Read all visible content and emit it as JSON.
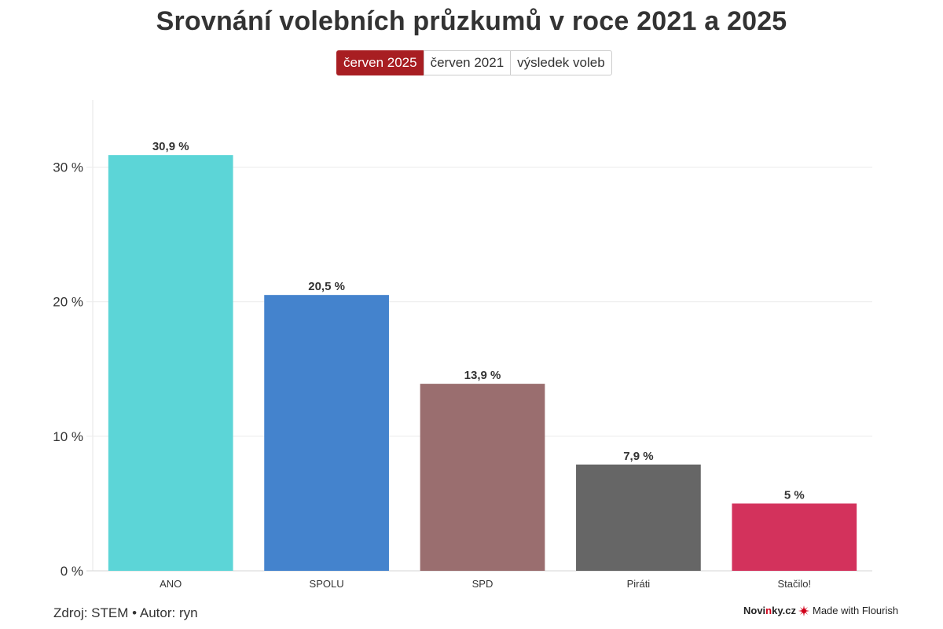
{
  "title": "Srovnání volebních průzkumů v roce 2021 a 2025",
  "tabs": [
    {
      "label": "červen 2025",
      "active": true
    },
    {
      "label": "červen 2021",
      "active": false
    },
    {
      "label": "výsledek voleb",
      "active": false
    }
  ],
  "footer": {
    "source": "Zdroj: STEM • Autor: ryn",
    "brand_novinky_prefix": "Novi",
    "brand_novinky_accent": "n",
    "brand_novinky_suffix": "ky.cz",
    "brand_flourish": "Made with Flourish"
  },
  "chart_data": {
    "type": "bar",
    "title": "Srovnání volebních průzkumů v roce 2021 a 2025",
    "categories": [
      "ANO",
      "SPOLU",
      "SPD",
      "Piráti",
      "Stačilo!"
    ],
    "values": [
      30.9,
      20.5,
      13.9,
      7.9,
      5
    ],
    "value_labels": [
      "30,9 %",
      "20,5 %",
      "13,9 %",
      "7,9 %",
      "5 %"
    ],
    "colors": [
      "#5cd5d7",
      "#4483cd",
      "#9a6e6f",
      "#666666",
      "#d3325c"
    ],
    "ylim": [
      0,
      35
    ],
    "yticks": [
      0,
      10,
      20,
      30
    ],
    "ytick_labels": [
      "0 %",
      "10 %",
      "20 %",
      "30 %"
    ],
    "xlabel": "",
    "ylabel": "",
    "grid": true
  }
}
